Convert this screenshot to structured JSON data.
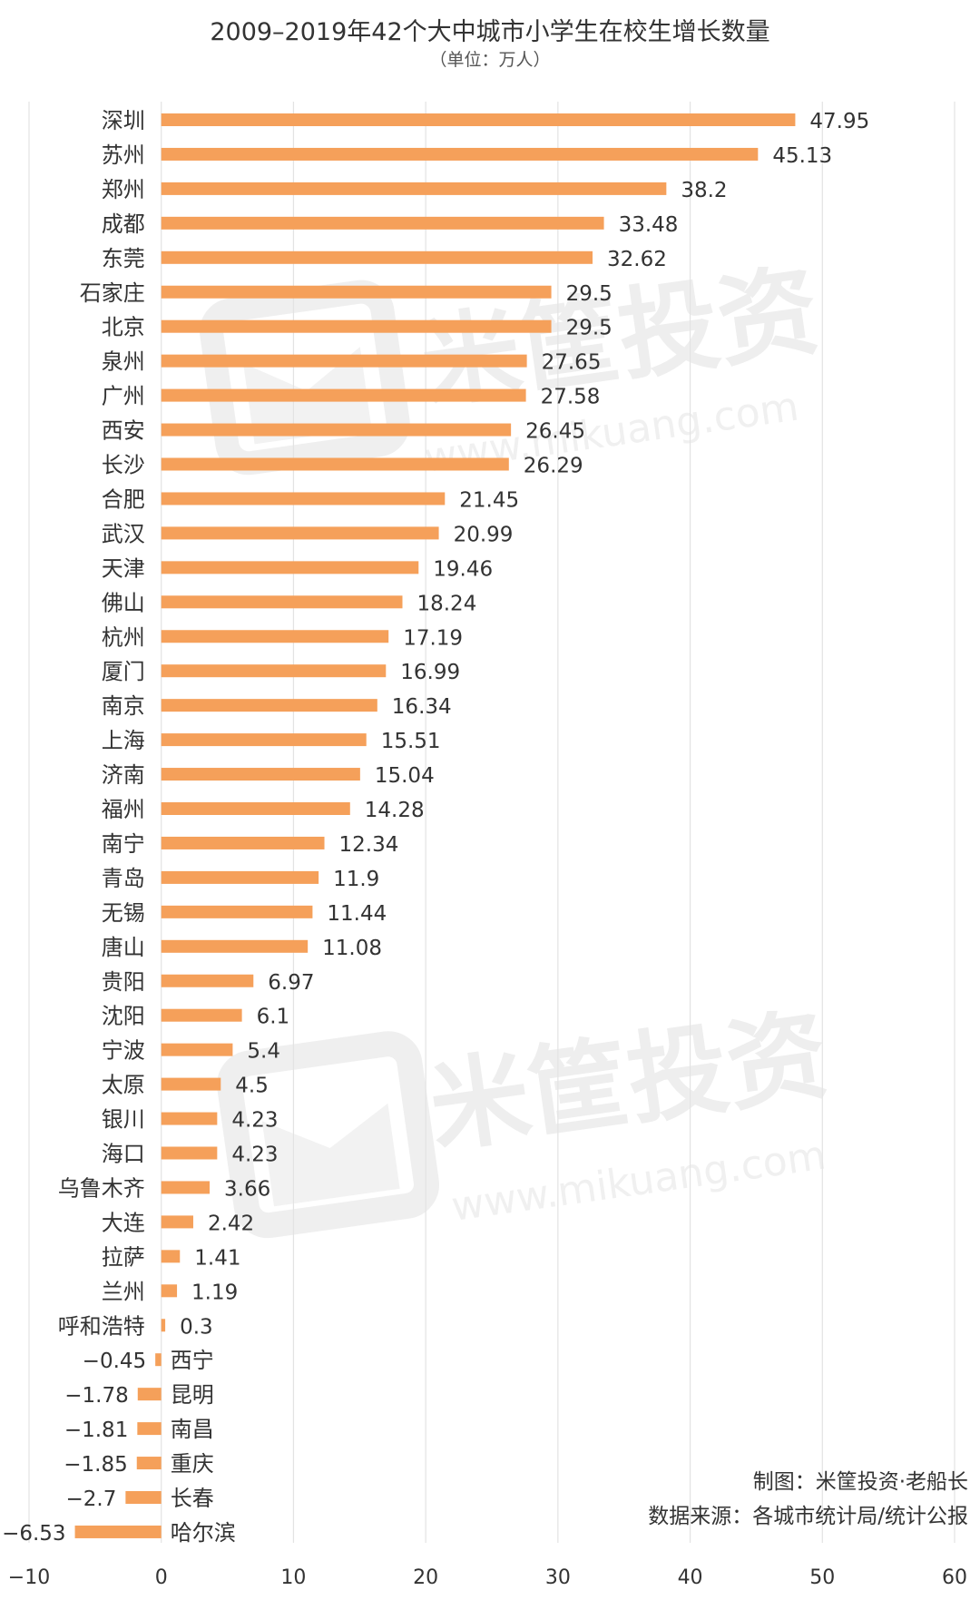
{
  "chart_data": {
    "type": "bar",
    "orientation": "horizontal",
    "title": "2009–2019年42个大中城市小学生在校生增长数量",
    "subtitle": "（单位：万人）",
    "xlim": [
      -10,
      60
    ],
    "xticks": [
      "−10",
      "0",
      "10",
      "20",
      "30",
      "40",
      "50",
      "60"
    ],
    "grid": true,
    "bar_color": "#f5a05a",
    "categories": [
      "深圳",
      "苏州",
      "郑州",
      "成都",
      "东莞",
      "石家庄",
      "北京",
      "泉州",
      "广州",
      "西安",
      "长沙",
      "合肥",
      "武汉",
      "天津",
      "佛山",
      "杭州",
      "厦门",
      "南京",
      "上海",
      "济南",
      "福州",
      "南宁",
      "青岛",
      "无锡",
      "唐山",
      "贵阳",
      "沈阳",
      "宁波",
      "太原",
      "银川",
      "海口",
      "乌鲁木齐",
      "大连",
      "拉萨",
      "兰州",
      "呼和浩特",
      "西宁",
      "昆明",
      "南昌",
      "重庆",
      "长春",
      "哈尔滨"
    ],
    "values": [
      47.95,
      45.13,
      38.2,
      33.48,
      32.62,
      29.5,
      29.5,
      27.65,
      27.58,
      26.45,
      26.29,
      21.45,
      20.99,
      19.46,
      18.24,
      17.19,
      16.99,
      16.34,
      15.51,
      15.04,
      14.28,
      12.34,
      11.9,
      11.44,
      11.08,
      6.97,
      6.1,
      5.4,
      4.5,
      4.23,
      4.23,
      3.66,
      2.42,
      1.41,
      1.19,
      0.3,
      -0.45,
      -1.78,
      -1.81,
      -1.85,
      -2.7,
      -6.53
    ],
    "value_labels": [
      "47.95",
      "45.13",
      "38.2",
      "33.48",
      "32.62",
      "29.5",
      "29.5",
      "27.65",
      "27.58",
      "26.45",
      "26.29",
      "21.45",
      "20.99",
      "19.46",
      "18.24",
      "17.19",
      "16.99",
      "16.34",
      "15.51",
      "15.04",
      "14.28",
      "12.34",
      "11.9",
      "11.44",
      "11.08",
      "6.97",
      "6.1",
      "5.4",
      "4.5",
      "4.23",
      "4.23",
      "3.66",
      "2.42",
      "1.41",
      "1.19",
      "0.3",
      "−0.45",
      "−1.78",
      "−1.81",
      "−1.85",
      "−2.7",
      "−6.53"
    ]
  },
  "notes": {
    "credit": "制图：米筐投资·老船长",
    "source": "数据来源：各城市统计局/统计公报"
  },
  "watermark": {
    "text": "米筐投资",
    "url": "www.mikuang.com"
  }
}
